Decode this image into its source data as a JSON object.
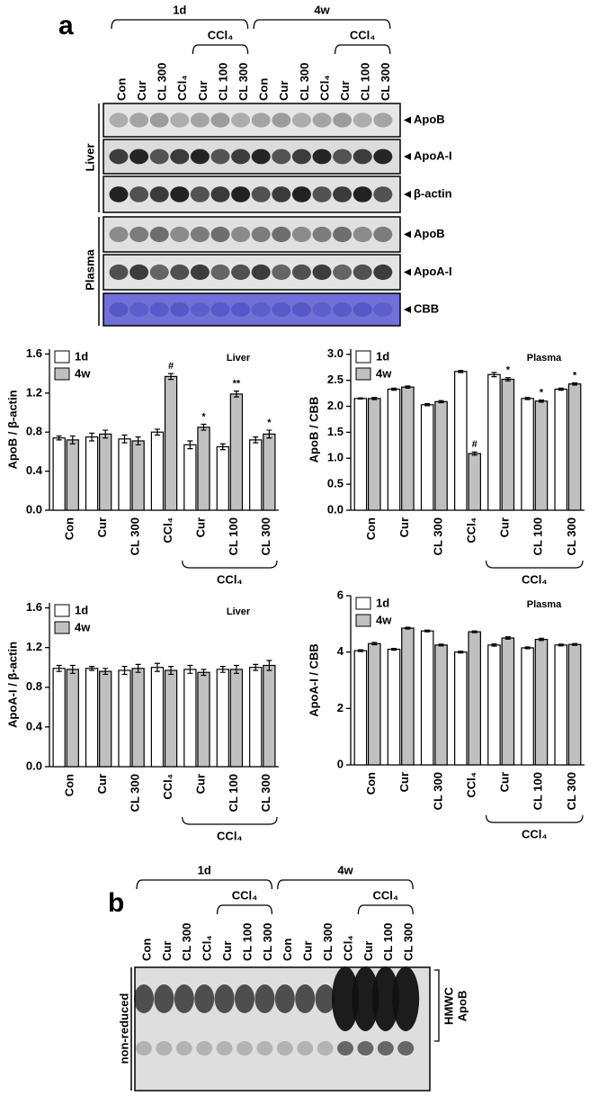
{
  "panel_a": {
    "label": "a",
    "groups": [
      "1d",
      "4w"
    ],
    "treatment": "CCl₄",
    "lanes": [
      "Con",
      "Cur",
      "CL 300",
      "CCl₄",
      "Cur",
      "CL 100",
      "CL 300",
      "Con",
      "Cur",
      "CL 300",
      "CCl₄",
      "Cur",
      "CL 100",
      "CL 300"
    ],
    "tissues": [
      "Liver",
      "Plasma"
    ],
    "bands": [
      "ApoB",
      "ApoA-I",
      "β-actin",
      "ApoB",
      "ApoA-I",
      "CBB"
    ]
  },
  "chart_data": [
    {
      "type": "bar",
      "title": "Liver",
      "y_label": "ApoB / β-actin",
      "categories": [
        "Con",
        "Cur",
        "CL 300",
        "CCl₄",
        "Cur",
        "CL 100",
        "CL 300"
      ],
      "group_label": "CCl₄",
      "series": [
        {
          "name": "1d",
          "color": "#ffffff",
          "values": [
            0.74,
            0.75,
            0.73,
            0.8,
            0.67,
            0.65,
            0.72
          ],
          "errors": [
            0.02,
            0.04,
            0.04,
            0.03,
            0.04,
            0.03,
            0.03
          ],
          "labels": [
            null,
            null,
            null,
            null,
            null,
            null,
            null
          ]
        },
        {
          "name": "4w",
          "color": "#c0c0c0",
          "values": [
            0.72,
            0.78,
            0.71,
            1.37,
            0.85,
            1.19,
            0.78
          ],
          "errors": [
            0.04,
            0.04,
            0.04,
            0.03,
            0.03,
            0.03,
            0.04
          ],
          "labels": [
            null,
            null,
            null,
            "#",
            "*",
            "**",
            "*"
          ]
        }
      ],
      "ylim": [
        0,
        1.65
      ],
      "yticks": [
        {
          "value": 0,
          "label": "0.0"
        },
        0.4,
        0.8,
        1.2,
        1.6
      ]
    },
    {
      "type": "bar",
      "title": "Plasma",
      "y_label": "ApoB / CBB",
      "categories": [
        "Con",
        "Cur",
        "CL 300",
        "CCl₄",
        "Cur",
        "CL 100",
        "CL 300"
      ],
      "group_label": "CCl₄",
      "series": [
        {
          "name": "1d",
          "color": "#ffffff",
          "values": [
            2.15,
            2.33,
            2.03,
            2.67,
            2.61,
            2.15,
            2.33
          ],
          "errors": [
            0.01,
            0.02,
            0.02,
            0.02,
            0.04,
            0.02,
            0.02
          ],
          "labels": [
            null,
            null,
            null,
            null,
            null,
            null,
            null
          ]
        },
        {
          "name": "4w",
          "color": "#c0c0c0",
          "values": [
            2.15,
            2.37,
            2.09,
            1.09,
            2.52,
            2.1,
            2.43
          ],
          "errors": [
            0.02,
            0.02,
            0.02,
            0.03,
            0.03,
            0.02,
            0.02
          ],
          "labels": [
            null,
            null,
            null,
            "#",
            "*",
            "*",
            "*"
          ]
        }
      ],
      "ylim": [
        0,
        3.1
      ],
      "yticks": [
        {
          "value": 0,
          "label": "0.0"
        },
        0.5,
        {
          "value": 1,
          "label": "1.0"
        },
        1.5,
        {
          "value": 2,
          "label": "2.0"
        },
        2.5,
        {
          "value": 3,
          "label": "3.0"
        }
      ]
    },
    {
      "type": "bar",
      "title": "Liver",
      "y_label": "ApoA-I / β-actin",
      "categories": [
        "Con",
        "Cur",
        "CL 300",
        "CCl₄",
        "Cur",
        "CL 100",
        "CL 300"
      ],
      "group_label": "CCl₄",
      "series": [
        {
          "name": "1d",
          "color": "#ffffff",
          "values": [
            0.99,
            0.99,
            0.97,
            1.0,
            0.98,
            0.98,
            1.0
          ],
          "errors": [
            0.03,
            0.02,
            0.04,
            0.04,
            0.04,
            0.03,
            0.03
          ],
          "labels": [
            null,
            null,
            null,
            null,
            null,
            null,
            null
          ]
        },
        {
          "name": "4w",
          "color": "#c0c0c0",
          "values": [
            0.98,
            0.96,
            0.99,
            0.97,
            0.95,
            0.98,
            1.02
          ],
          "errors": [
            0.04,
            0.03,
            0.04,
            0.04,
            0.03,
            0.04,
            0.05
          ],
          "labels": [
            null,
            null,
            null,
            null,
            null,
            null,
            null
          ]
        }
      ],
      "ylim": [
        0,
        1.65
      ],
      "yticks": [
        {
          "value": 0,
          "label": "0.0"
        },
        0.4,
        0.8,
        1.2,
        1.6
      ]
    },
    {
      "type": "bar",
      "title": "Plasma",
      "y_label": "ApoA-I / CBB",
      "categories": [
        "Con",
        "Cur",
        "CL 300",
        "CCl₄",
        "Cur",
        "CL 100",
        "CL 300"
      ],
      "group_label": "CCl₄",
      "series": [
        {
          "name": "1d",
          "color": "#ffffff",
          "values": [
            4.05,
            4.1,
            4.75,
            4.0,
            4.25,
            4.15,
            4.25
          ],
          "errors": [
            0.03,
            0.03,
            0.03,
            0.03,
            0.04,
            0.03,
            0.03
          ],
          "labels": [
            null,
            null,
            null,
            null,
            null,
            null,
            null
          ]
        },
        {
          "name": "4w",
          "color": "#c0c0c0",
          "values": [
            4.3,
            4.85,
            4.25,
            4.72,
            4.5,
            4.45,
            4.27
          ],
          "errors": [
            0.04,
            0.03,
            0.03,
            0.03,
            0.04,
            0.04,
            0.03
          ],
          "labels": [
            null,
            null,
            null,
            null,
            null,
            null,
            null
          ]
        }
      ],
      "ylim": [
        0,
        6
      ],
      "yticks": [
        0,
        2,
        4,
        6
      ]
    }
  ],
  "panel_b": {
    "label": "b",
    "groups": [
      "1d",
      "4w"
    ],
    "treatment": "CCl₄",
    "lanes": [
      "Con",
      "Cur",
      "CL 300",
      "CCl₄",
      "Cur",
      "CL 100",
      "CL 300",
      "Con",
      "Cur",
      "CL 300",
      "CCl₄",
      "Cur",
      "CL 100",
      "CL 300"
    ],
    "side_label": "non-reduced",
    "band_labels": [
      "HMWC",
      "ApoB"
    ]
  }
}
